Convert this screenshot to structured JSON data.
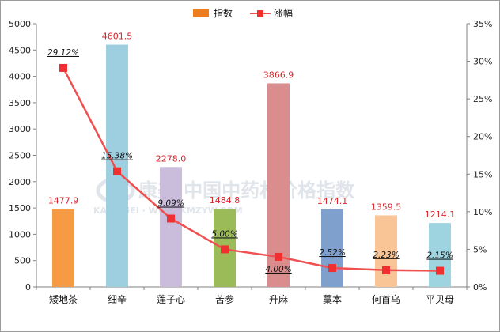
{
  "chart_data": {
    "type": "bar",
    "categories": [
      "矮地茶",
      "细辛",
      "莲子心",
      "苦参",
      "升麻",
      "藁本",
      "何首乌",
      "平贝母"
    ],
    "series": [
      {
        "name": "指数",
        "type": "bar",
        "axis": "left",
        "values": [
          1477.9,
          4601.5,
          2278.0,
          1484.8,
          3866.9,
          1474.1,
          1359.5,
          1214.1
        ],
        "labels": [
          "1477.9",
          "4601.5",
          "2278.0",
          "1484.8",
          "3866.9",
          "1474.1",
          "1359.5",
          "1214.1"
        ],
        "colors": [
          "#f79a44",
          "#9ecfe0",
          "#c9bddb",
          "#9bbb59",
          "#d98d8d",
          "#7f9fcc",
          "#f9c596",
          "#9ed4e0"
        ]
      },
      {
        "name": "涨幅",
        "type": "line",
        "axis": "right",
        "values": [
          29.12,
          15.38,
          9.09,
          5.0,
          4.0,
          2.52,
          2.23,
          2.15
        ],
        "labels": [
          "29.12%",
          "15.38%",
          "9.09%",
          "5.00%",
          "4.00%",
          "2.52%",
          "2.23%",
          "2.15%"
        ],
        "color": "#f05050"
      }
    ],
    "y_left": {
      "min": 0,
      "max": 5000,
      "ticks": [
        "0",
        "500",
        "1000",
        "1500",
        "2000",
        "2500",
        "3000",
        "3500",
        "4000",
        "4500",
        "5000"
      ]
    },
    "y_right": {
      "min": 0,
      "max": 35,
      "ticks": [
        "0%",
        "5%",
        "10%",
        "15%",
        "20%",
        "25%",
        "30%",
        "35%"
      ]
    },
    "legend": {
      "position": "top",
      "items": [
        "指数",
        "涨幅"
      ]
    },
    "grid": false,
    "title": "",
    "xlabel": "",
    "ylabel": ""
  },
  "watermark": {
    "main": "康美·中国中药材价格指数",
    "sub": "KANGMEI  ·  WWW.KMZYW.COM"
  },
  "colors": {
    "bar_label": "#d9262c",
    "axis": "#808080"
  }
}
